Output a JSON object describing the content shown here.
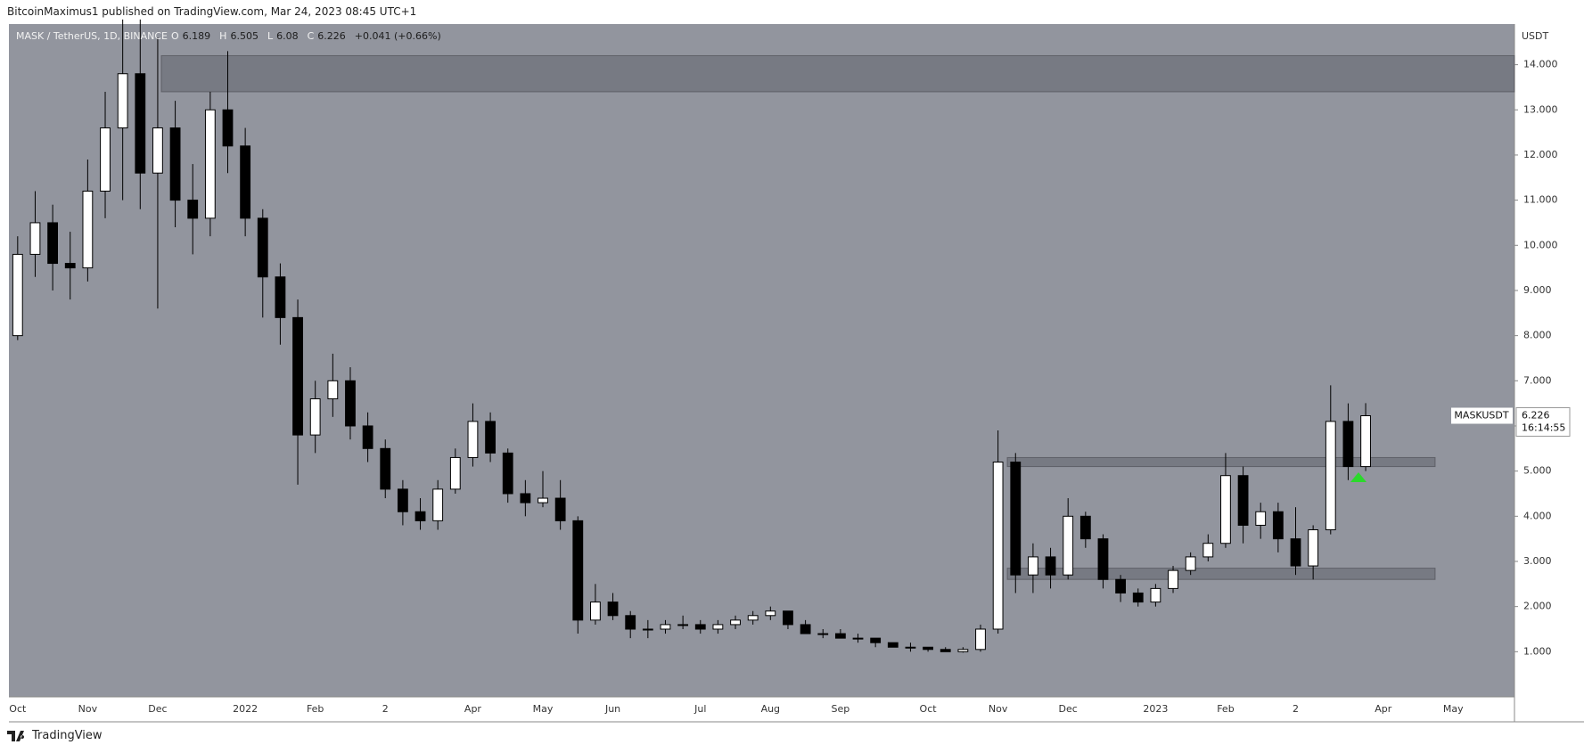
{
  "header": {
    "publisher": "BitcoinMaximus1 published on TradingView.com, Mar 24, 2023 08:45 UTC+1"
  },
  "legend": {
    "o_label": "O",
    "open": 6.189,
    "h_label": "H",
    "high": 6.505,
    "l_label": "L",
    "low": 6.08,
    "c_label": "C",
    "close": 6.226,
    "change": "+0.041 (+0.66%)"
  },
  "price_label": {
    "symbol": "MASKUSDT",
    "price": 6.226,
    "countdown": "16:14:55"
  },
  "footer": {
    "brand": "TradingView"
  },
  "chart_data": {
    "type": "candlestick",
    "title": "MASK / TetherUS, 1D, BINANCE",
    "y_axis_label": "USDT",
    "categories": [
      "Oct",
      null,
      null,
      null,
      "Nov",
      null,
      null,
      null,
      "Dec",
      null,
      null,
      null,
      null,
      "2022",
      null,
      null,
      null,
      "Feb",
      null,
      null,
      null,
      "2",
      null,
      null,
      null,
      null,
      "Apr",
      null,
      null,
      null,
      "May",
      null,
      null,
      null,
      "Jun",
      null,
      null,
      null,
      null,
      "Jul",
      null,
      null,
      null,
      "Aug",
      null,
      null,
      null,
      "Sep",
      null,
      null,
      null,
      null,
      "Oct",
      null,
      null,
      null,
      "Nov",
      null,
      null,
      null,
      "Dec",
      null,
      null,
      null,
      null,
      "2023",
      null,
      null,
      null,
      "Feb",
      null,
      null,
      null,
      "2",
      null,
      null,
      null,
      null,
      "Apr",
      null,
      null,
      null,
      "May",
      null,
      null,
      null
    ],
    "open": [
      8.0,
      9.8,
      10.5,
      9.6,
      9.5,
      11.2,
      12.6,
      13.8,
      11.6,
      12.6,
      11.0,
      10.6,
      13.0,
      12.2,
      10.6,
      9.3,
      8.4,
      5.8,
      6.6,
      7.0,
      6.0,
      5.5,
      4.6,
      4.1,
      3.9,
      4.6,
      5.3,
      6.1,
      5.4,
      4.5,
      4.3,
      4.4,
      3.9,
      1.7,
      2.1,
      1.8,
      1.5,
      1.5,
      1.6,
      1.6,
      1.5,
      1.6,
      1.7,
      1.8,
      1.9,
      1.6,
      1.4,
      1.4,
      1.3,
      1.3,
      1.2,
      1.1,
      1.1,
      1.05,
      1.0,
      1.05,
      1.5,
      5.2,
      2.7,
      3.1,
      2.7,
      4.0,
      3.5,
      2.6,
      2.3,
      2.1,
      2.4,
      2.8,
      3.1,
      3.4,
      4.9,
      3.8,
      4.1,
      3.5,
      2.9,
      3.7,
      6.1,
      5.1,
      null,
      null,
      null,
      null,
      null,
      null,
      null,
      null
    ],
    "high": [
      10.2,
      11.2,
      10.9,
      10.3,
      11.9,
      13.4,
      15.0,
      15.0,
      14.6,
      13.2,
      11.8,
      13.4,
      14.3,
      12.6,
      10.8,
      9.6,
      8.8,
      7.0,
      7.6,
      7.3,
      6.3,
      5.7,
      4.8,
      4.4,
      4.8,
      5.5,
      6.5,
      6.3,
      5.5,
      4.8,
      5.0,
      4.8,
      4.0,
      2.5,
      2.3,
      1.9,
      1.7,
      1.7,
      1.8,
      1.7,
      1.7,
      1.8,
      1.9,
      2.0,
      1.9,
      1.7,
      1.5,
      1.5,
      1.4,
      1.3,
      1.2,
      1.2,
      1.1,
      1.1,
      1.1,
      1.6,
      5.9,
      5.4,
      3.4,
      3.3,
      4.4,
      4.1,
      3.6,
      2.7,
      2.4,
      2.5,
      2.9,
      3.2,
      3.6,
      5.4,
      5.1,
      4.3,
      4.3,
      4.2,
      3.8,
      6.9,
      6.5,
      6.505,
      null,
      null,
      null,
      null,
      null,
      null,
      null,
      null
    ],
    "low": [
      7.9,
      9.3,
      9.0,
      8.8,
      9.2,
      10.6,
      11.0,
      10.8,
      8.6,
      10.4,
      9.8,
      10.2,
      11.6,
      10.2,
      8.4,
      7.8,
      4.7,
      5.4,
      6.2,
      5.7,
      5.2,
      4.4,
      3.8,
      3.7,
      3.7,
      4.5,
      5.1,
      5.2,
      4.3,
      4.0,
      4.2,
      3.7,
      1.4,
      1.6,
      1.7,
      1.3,
      1.3,
      1.4,
      1.5,
      1.4,
      1.4,
      1.5,
      1.6,
      1.7,
      1.5,
      1.4,
      1.3,
      1.3,
      1.2,
      1.1,
      1.1,
      1.0,
      1.0,
      1.0,
      0.98,
      1.0,
      1.4,
      2.3,
      2.3,
      2.4,
      2.6,
      3.3,
      2.4,
      2.1,
      2.0,
      2.0,
      2.3,
      2.7,
      3.0,
      3.3,
      3.4,
      3.5,
      3.2,
      2.7,
      2.6,
      3.6,
      4.8,
      5.0,
      null,
      null,
      null,
      null,
      null,
      null,
      null,
      null
    ],
    "close": [
      9.8,
      10.5,
      9.6,
      9.5,
      11.2,
      12.6,
      13.8,
      11.6,
      12.6,
      11.0,
      10.6,
      13.0,
      12.2,
      10.6,
      9.3,
      8.4,
      5.8,
      6.6,
      7.0,
      6.0,
      5.5,
      4.6,
      4.1,
      3.9,
      4.6,
      5.3,
      6.1,
      5.4,
      4.5,
      4.3,
      4.4,
      3.9,
      1.7,
      2.1,
      1.8,
      1.5,
      1.5,
      1.6,
      1.6,
      1.5,
      1.6,
      1.7,
      1.8,
      1.9,
      1.6,
      1.4,
      1.4,
      1.3,
      1.3,
      1.2,
      1.1,
      1.1,
      1.05,
      1.0,
      1.05,
      1.5,
      5.2,
      2.7,
      3.1,
      2.7,
      4.0,
      3.5,
      2.6,
      2.3,
      2.1,
      2.4,
      2.8,
      3.1,
      3.4,
      4.9,
      3.8,
      4.1,
      3.5,
      2.9,
      3.7,
      6.1,
      5.1,
      6.226,
      null,
      null,
      null,
      null,
      null,
      null,
      null,
      null
    ],
    "zones": [
      {
        "low": 13.4,
        "high": 14.2
      },
      {
        "low": 5.1,
        "high": 5.3
      },
      {
        "low": 2.6,
        "high": 2.85
      }
    ],
    "ylim": [
      0,
      14.9
    ],
    "yticks": [
      {
        "value": 1,
        "label": "1.000"
      },
      {
        "value": 2,
        "label": "2.000"
      },
      {
        "value": 3,
        "label": "3.000"
      },
      {
        "value": 4,
        "label": "4.000"
      },
      {
        "value": 5,
        "label": "5.000"
      },
      {
        "value": 6,
        "label": "6.000"
      },
      {
        "value": 7,
        "label": "7.000"
      },
      {
        "value": 8,
        "label": "8.000"
      },
      {
        "value": 9,
        "label": "9.000"
      },
      {
        "value": 10,
        "label": "10.000"
      },
      {
        "value": 11,
        "label": "11.000"
      },
      {
        "value": 12,
        "label": "12.000"
      },
      {
        "value": 13,
        "label": "13.000"
      },
      {
        "value": 14,
        "label": "14.000"
      }
    ],
    "up_color": "#ffffff",
    "down_color": "#000000",
    "background": "#92959e",
    "grid": false
  }
}
